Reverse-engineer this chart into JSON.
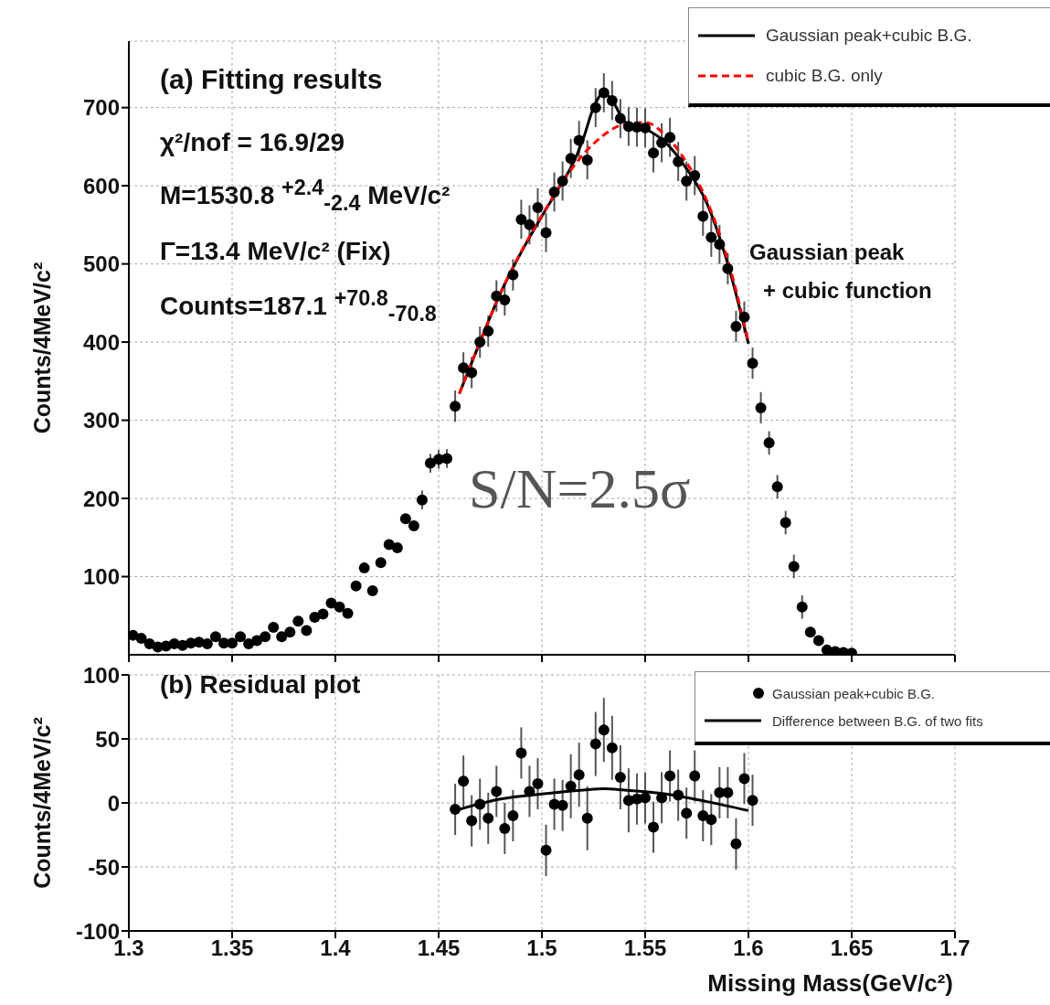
{
  "chart_data": [
    {
      "type": "scatter",
      "ylabel": "Counts/4MeV/c²",
      "annotations": [
        "(a) Fitting results",
        "χ²/nof = 16.9/29",
        "M=1530.8 $^{+2.4}$$_{-2.4}$ MeV/c²",
        "Γ=13.4 MeV/c² (Fix)",
        "Counts=187.1 $^{+70.8}$$_{-70.8}$",
        "Gaussian peak",
        "+ cubic function",
        "S/N=2.5σ"
      ],
      "xlim": [
        1.3,
        1.7
      ],
      "xticks": [
        1.3,
        1.35,
        1.4,
        1.45,
        1.5,
        1.55,
        1.6,
        1.65,
        1.7
      ],
      "ylim": [
        0,
        785
      ],
      "yticks": [
        100,
        200,
        300,
        400,
        500,
        600,
        700
      ],
      "tick_labels": "y",
      "grid": true,
      "legend": "top right",
      "series": [
        {
          "color": "#000000",
          "marker": "circle",
          "x": [
            1.302,
            1.306,
            1.31,
            1.314,
            1.318,
            1.322,
            1.326,
            1.33,
            1.334,
            1.338,
            1.342,
            1.346,
            1.35,
            1.354,
            1.358,
            1.362,
            1.366,
            1.37,
            1.374,
            1.378,
            1.382,
            1.386,
            1.39,
            1.394,
            1.398,
            1.402,
            1.406,
            1.41,
            1.414,
            1.418,
            1.422,
            1.426,
            1.43,
            1.434,
            1.438,
            1.442,
            1.446,
            1.45,
            1.454,
            1.458,
            1.462,
            1.466,
            1.47,
            1.474,
            1.478,
            1.482,
            1.486,
            1.49,
            1.494,
            1.498,
            1.502,
            1.506,
            1.51,
            1.514,
            1.518,
            1.522,
            1.526,
            1.53,
            1.534,
            1.538,
            1.542,
            1.546,
            1.55,
            1.554,
            1.558,
            1.562,
            1.566,
            1.57,
            1.574,
            1.578,
            1.582,
            1.586,
            1.59,
            1.594,
            1.598,
            1.602,
            1.606,
            1.61,
            1.614,
            1.618,
            1.622,
            1.626,
            1.63,
            1.634,
            1.638,
            1.642,
            1.646,
            1.65
          ],
          "values": [
            25,
            21,
            14,
            10,
            11,
            14,
            12,
            15,
            16,
            14,
            23,
            15,
            15,
            23,
            14,
            18,
            23,
            35,
            23,
            29,
            43,
            31,
            48,
            52,
            66,
            61,
            53,
            88,
            111,
            82,
            118,
            141,
            137,
            174,
            165,
            198,
            245,
            250,
            251,
            318,
            367,
            361,
            400,
            414,
            459,
            454,
            486,
            557,
            550,
            572,
            540,
            592,
            606,
            635,
            658,
            633,
            700,
            719,
            709,
            686,
            676,
            675,
            674,
            642,
            655,
            662,
            631,
            606,
            613,
            561,
            534,
            525,
            494,
            420,
            432,
            373,
            316,
            271,
            215,
            169,
            113,
            61,
            29,
            18,
            6,
            4,
            3,
            2
          ],
          "errors": [
            null,
            null,
            null,
            null,
            null,
            null,
            null,
            null,
            null,
            null,
            null,
            null,
            null,
            null,
            null,
            null,
            null,
            null,
            null,
            null,
            null,
            null,
            null,
            null,
            null,
            null,
            null,
            null,
            null,
            null,
            null,
            null,
            null,
            null,
            null,
            12,
            12,
            12,
            12,
            20,
            20,
            20,
            20,
            20,
            20,
            20,
            20,
            25,
            25,
            25,
            25,
            25,
            25,
            25,
            25,
            25,
            25,
            25,
            25,
            25,
            25,
            25,
            25,
            25,
            25,
            25,
            25,
            25,
            25,
            25,
            25,
            25,
            20,
            20,
            20,
            20,
            20,
            15,
            15,
            15,
            15,
            15,
            null,
            null,
            null,
            null,
            null,
            null
          ]
        },
        {
          "type": "line",
          "name": "Gaussian peak+cubic B.G.",
          "color": "#000000",
          "line_style": "solid",
          "x": [
            1.46,
            1.47,
            1.48,
            1.49,
            1.5,
            1.51,
            1.515,
            1.52,
            1.525,
            1.53,
            1.535,
            1.54,
            1.55,
            1.56,
            1.57,
            1.58,
            1.59,
            1.6
          ],
          "values": [
            334,
            400,
            463,
            515,
            561,
            605,
            628,
            660,
            700,
            719,
            705,
            682,
            673,
            655,
            622,
            577,
            500,
            398
          ]
        },
        {
          "type": "line",
          "name": "cubic B.G. only",
          "color": "#ff0000",
          "line_style": "dashed",
          "x": [
            1.46,
            1.47,
            1.48,
            1.49,
            1.5,
            1.51,
            1.52,
            1.53,
            1.54,
            1.55,
            1.56,
            1.57,
            1.58,
            1.59,
            1.6
          ],
          "values": [
            334,
            400,
            463,
            516,
            562,
            605,
            640,
            665,
            679,
            681,
            664,
            630,
            580,
            505,
            400
          ]
        }
      ]
    },
    {
      "type": "scatter",
      "xlabel": "Missing Mass(GeV/c²)",
      "ylabel": "Counts/4MeV/c²",
      "annotations": [
        "(b) Residual plot"
      ],
      "xlim": [
        1.3,
        1.7
      ],
      "xticks": [
        1.3,
        1.35,
        1.4,
        1.45,
        1.5,
        1.55,
        1.6,
        1.65,
        1.7
      ],
      "ylim": [
        -100,
        100
      ],
      "yticks": [
        -100,
        -50,
        0,
        50,
        100
      ],
      "grid": true,
      "legend": "top right",
      "series": [
        {
          "name": "Gaussian peak+cubic B.G.",
          "color": "#000000",
          "marker": "circle",
          "x": [
            1.458,
            1.462,
            1.466,
            1.47,
            1.474,
            1.478,
            1.482,
            1.486,
            1.49,
            1.494,
            1.498,
            1.502,
            1.506,
            1.51,
            1.514,
            1.518,
            1.522,
            1.526,
            1.53,
            1.534,
            1.538,
            1.542,
            1.546,
            1.55,
            1.554,
            1.558,
            1.562,
            1.566,
            1.57,
            1.574,
            1.578,
            1.582,
            1.586,
            1.59,
            1.594,
            1.598,
            1.602
          ],
          "values": [
            -5,
            17,
            -14,
            -1,
            -12,
            9,
            -20,
            -10,
            39,
            9,
            15,
            -37,
            -1,
            -2,
            13,
            22,
            -12,
            46,
            57,
            43,
            20,
            2,
            3,
            4,
            -19,
            4,
            21,
            6,
            -8,
            21,
            -10,
            -13,
            8,
            8,
            -32,
            19,
            2
          ],
          "errors": [
            20,
            20,
            20,
            20,
            20,
            20,
            20,
            20,
            20,
            20,
            20,
            20,
            20,
            20,
            25,
            25,
            25,
            25,
            25,
            25,
            25,
            25,
            20,
            20,
            20,
            20,
            20,
            20,
            20,
            20,
            20,
            20,
            20,
            20,
            20,
            20,
            20
          ]
        },
        {
          "type": "line",
          "name": "Difference between B.G. of two fits",
          "color": "#000000",
          "line_style": "solid",
          "x": [
            1.46,
            1.48,
            1.5,
            1.52,
            1.53,
            1.54,
            1.56,
            1.58,
            1.6
          ],
          "values": [
            -5,
            3,
            7,
            10,
            11,
            10,
            7,
            1,
            -6
          ]
        }
      ]
    }
  ]
}
